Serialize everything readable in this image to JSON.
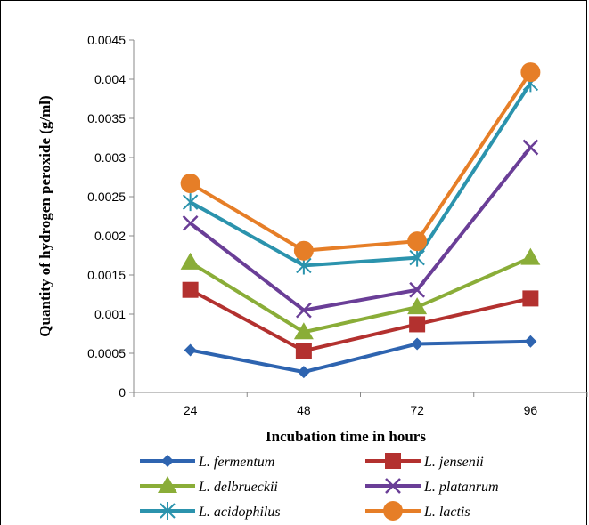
{
  "chart_data": {
    "type": "line",
    "title": "",
    "xlabel": "Incubation time in hours",
    "ylabel": "Quantity of hydrogen peroxide (g/ml)",
    "categories": [
      "24",
      "48",
      "72",
      "96"
    ],
    "ylim": [
      0,
      0.0045
    ],
    "yticks": [
      "0",
      "0.0005",
      "0.001",
      "0.0015",
      "0.002",
      "0.0025",
      "0.003",
      "0.0035",
      "0.004",
      "0.0045"
    ],
    "grid": false,
    "legend_position": "bottom",
    "series": [
      {
        "name": "L. fermentum",
        "values": [
          0.00054,
          0.00026,
          0.00062,
          0.00065
        ],
        "color": "#2E64B0",
        "marker": "diamond"
      },
      {
        "name": "L. jensenii",
        "values": [
          0.00131,
          0.00053,
          0.00087,
          0.0012
        ],
        "color": "#B3312F",
        "marker": "square"
      },
      {
        "name": "L. delbrueckii",
        "values": [
          0.00166,
          0.00077,
          0.00109,
          0.00172
        ],
        "color": "#8AAD38",
        "marker": "triangle"
      },
      {
        "name": "L. platanrum",
        "values": [
          0.00216,
          0.00105,
          0.00131,
          0.00313
        ],
        "color": "#6A3E97",
        "marker": "x"
      },
      {
        "name": "L. acidophilus",
        "values": [
          0.00243,
          0.00162,
          0.00172,
          0.00395
        ],
        "color": "#2B93AD",
        "marker": "asterisk"
      },
      {
        "name": "L. lactis",
        "values": [
          0.00267,
          0.00181,
          0.00193,
          0.00409
        ],
        "color": "#E67E27",
        "marker": "circle"
      }
    ]
  }
}
